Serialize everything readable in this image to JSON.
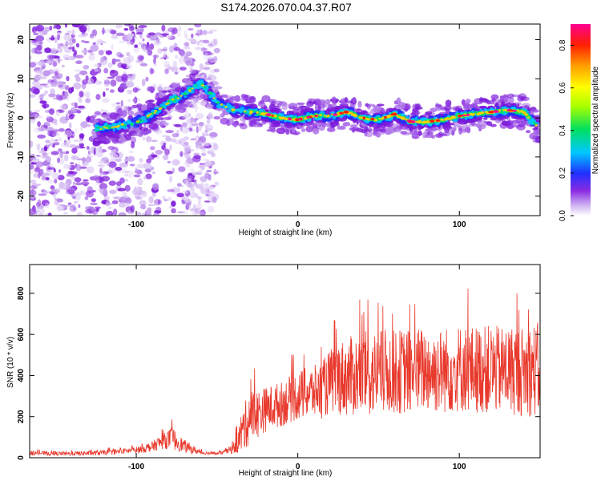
{
  "title": "S174.2026.070.04.37.R07",
  "colors": {
    "snr_line": "#e8392c",
    "spectrogram_scatter": "#8a2be2",
    "spectrogram_core": "#00bcd4"
  },
  "chart_data": [
    {
      "type": "heatmap",
      "name": "spectrogram",
      "xlabel": "Height of straight line (km)",
      "ylabel": "Frequency (Hz)",
      "xlim": [
        -166,
        150
      ],
      "ylim": [
        -25,
        24
      ],
      "xticks": [
        "-100",
        "0",
        "100"
      ],
      "xtick_values": [
        -100,
        0,
        100
      ],
      "yticks": [
        "-20",
        "-10",
        "0",
        "10",
        "20"
      ],
      "ytick_values": [
        -20,
        -10,
        0,
        10,
        20
      ],
      "ridge": {
        "x": [
          -130,
          -120,
          -110,
          -100,
          -90,
          -80,
          -70,
          -60,
          -50,
          -40,
          -30,
          -20,
          -10,
          0,
          10,
          20,
          30,
          40,
          50,
          60,
          70,
          80,
          90,
          100,
          110,
          120,
          130,
          140,
          148
        ],
        "y": [
          -3,
          -2.5,
          -2,
          -1,
          1,
          4,
          6,
          9,
          4,
          2,
          1.5,
          1,
          0,
          -0.5,
          0.5,
          0.5,
          1.5,
          0,
          -0.5,
          1,
          -1,
          -1,
          -0.5,
          0.5,
          1,
          1.5,
          2,
          1.5,
          -2
        ]
      },
      "colorbar": {
        "label": "Normalized spectral amplitude",
        "range": [
          0,
          0.9
        ],
        "ticks": [
          "0.0",
          "0.2",
          "0.4",
          "0.6",
          "0.8"
        ],
        "tick_values": [
          0.0,
          0.2,
          0.4,
          0.6,
          0.8
        ]
      }
    },
    {
      "type": "line",
      "name": "snr",
      "xlabel": "Height of straight line (km)",
      "ylabel": "SNR (10 * v/v)",
      "xlim": [
        -166,
        150
      ],
      "ylim": [
        0,
        940
      ],
      "xticks": [
        "-100",
        "0",
        "100"
      ],
      "xtick_values": [
        -100,
        0,
        100
      ],
      "yticks": [
        "0",
        "200",
        "400",
        "600",
        "800"
      ],
      "ytick_values": [
        0,
        200,
        400,
        600,
        800
      ],
      "series": [
        {
          "name": "SNR",
          "x": [
            -166,
            -160,
            -150,
            -140,
            -130,
            -120,
            -110,
            -100,
            -95,
            -90,
            -85,
            -80,
            -78,
            -75,
            -70,
            -65,
            -60,
            -55,
            -50,
            -45,
            -40,
            -37,
            -35,
            -32,
            -30,
            -25,
            -20,
            -15,
            -10,
            -5,
            0,
            5,
            10,
            15,
            20,
            25,
            30,
            35,
            40,
            45,
            50,
            55,
            60,
            65,
            70,
            75,
            80,
            85,
            90,
            95,
            100,
            105,
            110,
            115,
            120,
            125,
            130,
            135,
            140,
            145,
            150
          ],
          "mean": [
            22,
            22,
            20,
            20,
            22,
            25,
            30,
            38,
            45,
            55,
            75,
            90,
            95,
            80,
            55,
            40,
            25,
            22,
            20,
            28,
            45,
            80,
            120,
            165,
            200,
            215,
            235,
            250,
            260,
            285,
            300,
            315,
            320,
            330,
            370,
            390,
            390,
            400,
            405,
            405,
            410,
            420,
            415,
            420,
            420,
            425,
            430,
            420,
            425,
            430,
            435,
            430,
            430,
            430,
            430,
            425,
            430,
            425,
            420,
            430,
            420
          ],
          "spread": [
            10,
            10,
            10,
            10,
            12,
            12,
            14,
            16,
            20,
            25,
            35,
            45,
            60,
            45,
            30,
            20,
            10,
            8,
            6,
            12,
            25,
            60,
            100,
            120,
            140,
            120,
            110,
            110,
            110,
            115,
            120,
            125,
            130,
            140,
            160,
            180,
            190,
            200,
            210,
            210,
            210,
            210,
            205,
            210,
            210,
            210,
            210,
            210,
            210,
            215,
            215,
            215,
            215,
            215,
            215,
            215,
            220,
            220,
            220,
            230,
            240
          ]
        }
      ]
    }
  ]
}
